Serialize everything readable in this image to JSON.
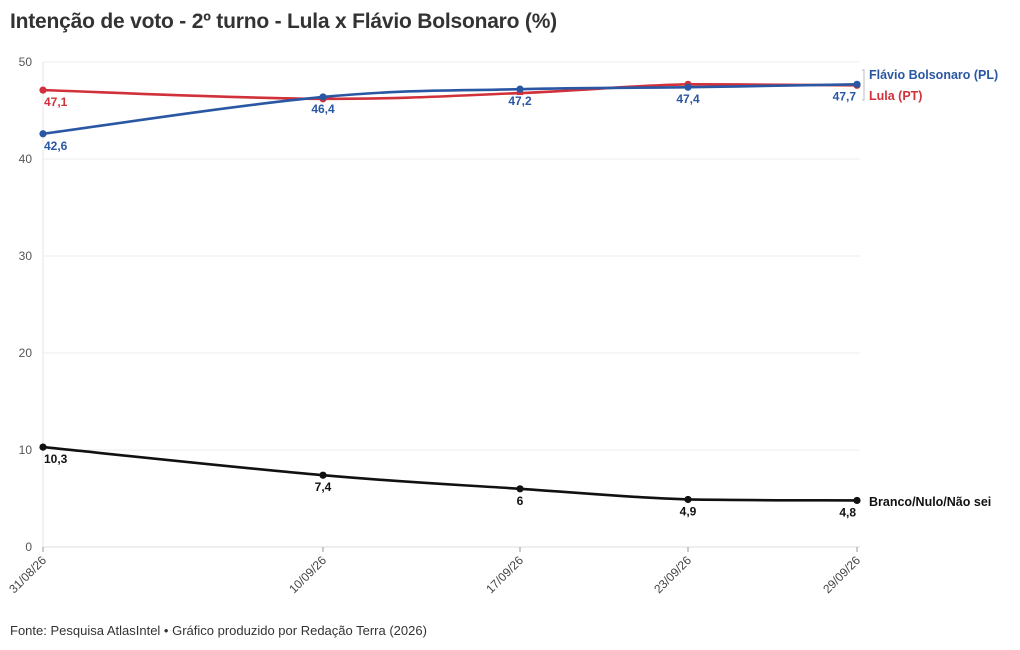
{
  "title": "Intenção de voto - 2º turno - Lula x Flávio Bolsonaro (%)",
  "footer": "Fonte: Pesquisa AtlasIntel • Gráfico produzido por Redação Terra (2026)",
  "colors": {
    "flavio": "#2a57a3",
    "lula": "#d1313a",
    "branco": "#111111",
    "grid": "#ececec"
  },
  "chart_data": {
    "type": "line",
    "categories": [
      "31/08/26",
      "10/09/26",
      "17/09/26",
      "23/09/26",
      "29/09/26"
    ],
    "ylim": [
      0,
      50
    ],
    "yticks": [
      0,
      10,
      20,
      30,
      40,
      50
    ],
    "grid": true,
    "legend": "right, labels at line ends",
    "series": [
      {
        "name": "Flávio Bolsonaro (PL)",
        "color": "#2a57a3",
        "values": [
          42.6,
          46.4,
          47.2,
          47.4,
          47.7
        ],
        "labels": [
          "42,6",
          "46,4",
          "47,2",
          "47,4",
          "47,7"
        ]
      },
      {
        "name": "Lula (PT)",
        "color": "#d1313a",
        "values": [
          47.1,
          46.2,
          46.8,
          47.7,
          47.6
        ],
        "labels": [
          "47,1",
          "",
          "",
          "",
          ""
        ]
      },
      {
        "name": "Branco/Nulo/Não sei",
        "color": "#111111",
        "values": [
          10.3,
          7.4,
          6,
          4.9,
          4.8
        ],
        "labels": [
          "10,3",
          "7,4",
          "6",
          "4,9",
          "4,8"
        ]
      }
    ]
  }
}
